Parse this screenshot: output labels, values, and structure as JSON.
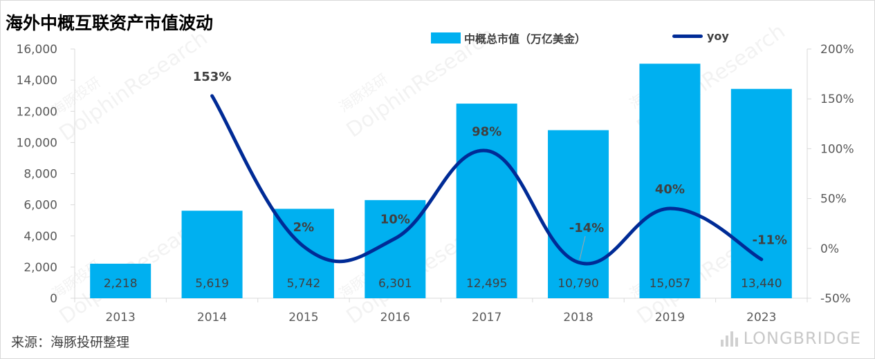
{
  "title": "海外中概互联资产市值波动",
  "source": "来源：海豚投研整理",
  "brand": {
    "watermark_text": "DolphinResearch",
    "watermark_cn": "海豚投研",
    "logo_text": "LONGBRIDGE"
  },
  "colors": {
    "bar": "#00b0f0",
    "line": "#002b96",
    "axis": "#595959",
    "grid": "#d9d9d9"
  },
  "chart_data": {
    "type": "bar",
    "title": "海外中概互联资产市值波动",
    "categories": [
      "2013",
      "2014",
      "2015",
      "2016",
      "2017",
      "2018",
      "2019",
      "2023"
    ],
    "series": [
      {
        "name": "中概总市值（万亿美金）",
        "type": "bar",
        "axis": "left",
        "values": [
          2218,
          5619,
          5742,
          6301,
          12495,
          10790,
          15057,
          13440
        ],
        "labels": [
          "2,218",
          "5,619",
          "5,742",
          "6,301",
          "12,495",
          "10,790",
          "15,057",
          "13,440"
        ]
      },
      {
        "name": "yoy",
        "type": "line",
        "axis": "right",
        "values": [
          null,
          153,
          2,
          10,
          98,
          -14,
          40,
          -11
        ],
        "labels": [
          "",
          "153%",
          "2%",
          "10%",
          "98%",
          "-14%",
          "40%",
          "-11%"
        ]
      }
    ],
    "y_left": {
      "min": 0,
      "max": 16000,
      "ticks": [
        "0",
        "2,000",
        "4,000",
        "6,000",
        "8,000",
        "10,000",
        "12,000",
        "14,000",
        "16,000"
      ]
    },
    "y_right": {
      "min": -50,
      "max": 200,
      "ticks": [
        "-50%",
        "0%",
        "50%",
        "100%",
        "150%",
        "200%"
      ]
    },
    "grid": false,
    "legend": "top"
  }
}
